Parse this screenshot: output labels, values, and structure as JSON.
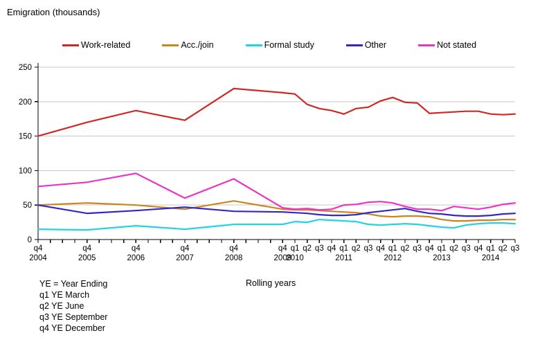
{
  "title": "Emigration (thousands)",
  "chart_data": {
    "type": "line",
    "title": "Emigration (thousands)",
    "xlabel": "",
    "ylabel": "Emigration (thousands)",
    "ylim": [
      0,
      250
    ],
    "y_ticks": [
      0,
      50,
      100,
      150,
      200,
      250
    ],
    "grid": "horizontal-only",
    "legend_position": "top",
    "x_labels": [
      "q4 2004",
      "q4 2005",
      "q4 2006",
      "q4 2007",
      "q4 2008",
      "q4 2009",
      "q1 2010",
      "q2 2010",
      "q3 2010",
      "q4 2010",
      "q1 2011",
      "q2 2011",
      "q3 2011",
      "q4 2011",
      "q1 2012",
      "q2 2012",
      "q3 2012",
      "q4 2012",
      "q1 2013",
      "q2 2013",
      "q3 2013",
      "q4 2013",
      "q1 2014",
      "q2 2014",
      "q3 2014"
    ],
    "x_offsets": [
      0,
      4,
      8,
      12,
      16,
      20,
      21,
      22,
      23,
      24,
      25,
      26,
      27,
      28,
      29,
      30,
      31,
      32,
      33,
      34,
      35,
      36,
      37,
      38,
      39
    ],
    "x_axis_quarters_total": 39,
    "x_tick_labels": [
      {
        "o": 0,
        "q": "q4",
        "year": "2004"
      },
      {
        "o": 4,
        "q": "q4",
        "year": "2005"
      },
      {
        "o": 8,
        "q": "q4",
        "year": "2006"
      },
      {
        "o": 12,
        "q": "q4",
        "year": "2007"
      },
      {
        "o": 16,
        "q": "q4",
        "year": "2008"
      },
      {
        "o": 20,
        "q": "q4",
        "year": "2009"
      },
      {
        "o": 21,
        "q": "q1",
        "year": "2010"
      },
      {
        "o": 22,
        "q": "q2"
      },
      {
        "o": 23,
        "q": "q3"
      },
      {
        "o": 24,
        "q": "q4"
      },
      {
        "o": 25,
        "q": "q1",
        "year": "2011"
      },
      {
        "o": 26,
        "q": "q2"
      },
      {
        "o": 27,
        "q": "q3"
      },
      {
        "o": 28,
        "q": "q4"
      },
      {
        "o": 29,
        "q": "q1",
        "year": "2012"
      },
      {
        "o": 30,
        "q": "q2"
      },
      {
        "o": 31,
        "q": "q3"
      },
      {
        "o": 32,
        "q": "q4"
      },
      {
        "o": 33,
        "q": "q1",
        "year": "2013"
      },
      {
        "o": 34,
        "q": "q2"
      },
      {
        "o": 35,
        "q": "q3"
      },
      {
        "o": 36,
        "q": "q4"
      },
      {
        "o": 37,
        "q": "q1",
        "year": "2014"
      },
      {
        "o": 38,
        "q": "q2"
      },
      {
        "o": 39,
        "q": "q3"
      }
    ],
    "series": [
      {
        "name": "Work-related",
        "color": "#d02724",
        "values": [
          150,
          170,
          187,
          173,
          219,
          213,
          211,
          196,
          190,
          187,
          182,
          190,
          192,
          201,
          206,
          199,
          198,
          183,
          184,
          185,
          186,
          186,
          182,
          181,
          182
        ]
      },
      {
        "name": "Acc./join",
        "color": "#c8861f",
        "values": [
          50,
          53,
          50,
          44,
          56,
          44,
          43,
          43,
          42,
          41,
          40,
          39,
          37,
          34,
          33,
          34,
          34,
          33,
          29,
          27,
          27,
          28,
          28,
          29,
          29
        ]
      },
      {
        "name": "Formal study",
        "color": "#22d3e6",
        "values": [
          15,
          14,
          20,
          15,
          22,
          22,
          26,
          25,
          29,
          28,
          27,
          26,
          22,
          21,
          22,
          23,
          22,
          20,
          18,
          17,
          21,
          23,
          24,
          24,
          23
        ]
      },
      {
        "name": "Other",
        "color": "#3226c9",
        "values": [
          50,
          38,
          42,
          47,
          41,
          40,
          39,
          38,
          36,
          35,
          35,
          36,
          39,
          41,
          43,
          45,
          41,
          38,
          37,
          35,
          34,
          34,
          35,
          37,
          38
        ]
      },
      {
        "name": "Not stated",
        "color": "#ec33c4",
        "values": [
          77,
          83,
          96,
          60,
          88,
          46,
          44,
          45,
          43,
          44,
          50,
          51,
          54,
          55,
          53,
          48,
          44,
          44,
          42,
          48,
          46,
          44,
          47,
          51,
          53
        ]
      }
    ],
    "colors": {
      "gridline": "#c9c9c9",
      "axis": "#000000",
      "text": "#000000"
    }
  },
  "notes": {
    "ye_definition": "YE = Year Ending",
    "q1": "q1 YE March",
    "q2": "q2 YE June",
    "q3": "q3 YE September",
    "q4": "q4 YE December",
    "axis_note": "Rolling years"
  }
}
